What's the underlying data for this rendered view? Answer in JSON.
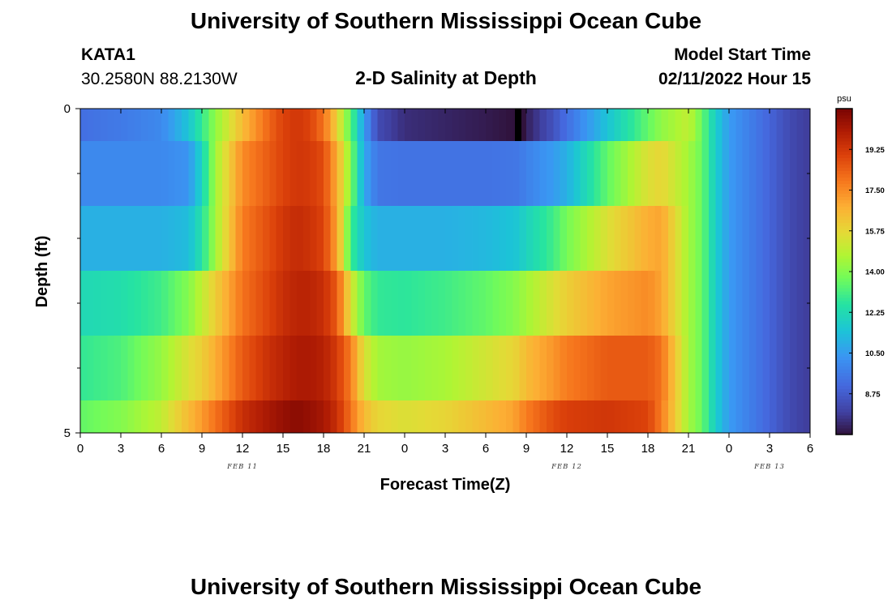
{
  "header": {
    "title": "University of Southern Mississippi Ocean Cube",
    "station_id": "KATA1",
    "station_coords": "30.2580N  88.2130W",
    "plot_subtitle": "2-D Salinity at Depth",
    "model_start_label": "Model Start Time",
    "model_start_value": "02/11/2022 Hour 15"
  },
  "footer": {
    "title": "University of Southern Mississippi Ocean Cube"
  },
  "chart_data": {
    "type": "heatmap",
    "title": "2-D Salinity at Depth",
    "xlabel": "Forecast Time(Z)",
    "ylabel": "Depth (ft)",
    "x_range_hours": [
      0,
      54
    ],
    "x_ticks": [
      {
        "hour": 0,
        "label": "0"
      },
      {
        "hour": 3,
        "label": "3"
      },
      {
        "hour": 6,
        "label": "6"
      },
      {
        "hour": 9,
        "label": "9"
      },
      {
        "hour": 12,
        "label": "12"
      },
      {
        "hour": 15,
        "label": "15"
      },
      {
        "hour": 18,
        "label": "18"
      },
      {
        "hour": 21,
        "label": "21"
      },
      {
        "hour": 24,
        "label": "0"
      },
      {
        "hour": 27,
        "label": "3"
      },
      {
        "hour": 30,
        "label": "6"
      },
      {
        "hour": 33,
        "label": "9"
      },
      {
        "hour": 36,
        "label": "12"
      },
      {
        "hour": 39,
        "label": "15"
      },
      {
        "hour": 42,
        "label": "18"
      },
      {
        "hour": 45,
        "label": "21"
      },
      {
        "hour": 48,
        "label": "0"
      },
      {
        "hour": 51,
        "label": "3"
      },
      {
        "hour": 54,
        "label": "6"
      }
    ],
    "date_labels": [
      {
        "hour": 12,
        "label": "FEB 11"
      },
      {
        "hour": 36,
        "label": "FEB 12"
      },
      {
        "hour": 51,
        "label": "FEB 13"
      }
    ],
    "y_range_ft": [
      0,
      5
    ],
    "y_tick_labels": [
      {
        "depth": 0,
        "label": "0"
      },
      {
        "depth": 5,
        "label": "5"
      }
    ],
    "y_minor_ticks": [
      1,
      2,
      3,
      4
    ],
    "depth_layers": [
      {
        "top": 0.0,
        "bottom": 0.5
      },
      {
        "top": 0.5,
        "bottom": 1.5
      },
      {
        "top": 1.5,
        "bottom": 2.5
      },
      {
        "top": 2.5,
        "bottom": 3.5
      },
      {
        "top": 3.5,
        "bottom": 4.5
      },
      {
        "top": 4.5,
        "bottom": 5.0
      }
    ],
    "series_hours": [
      0,
      3,
      6,
      8,
      9,
      10,
      12,
      14,
      15,
      16,
      17,
      18,
      19,
      19.5,
      20,
      21,
      22,
      24,
      27,
      30,
      32,
      32.4,
      33,
      35,
      36,
      39,
      42,
      43,
      45,
      46,
      47,
      48,
      49,
      50,
      51,
      52,
      53,
      54
    ],
    "salinity_by_layer": [
      [
        9.3,
        9.6,
        10.0,
        11.5,
        12.8,
        14.2,
        16.5,
        18.3,
        19.0,
        19.3,
        19.0,
        18.0,
        16.0,
        14.5,
        13.5,
        10.5,
        8.3,
        7.6,
        7.4,
        7.2,
        7.0,
        6.6,
        7.3,
        8.5,
        9.3,
        11.5,
        13.5,
        14.2,
        15.0,
        13.6,
        11.8,
        10.5,
        10.0,
        9.5,
        9.0,
        8.5,
        8.1,
        7.9
      ],
      [
        10.0,
        10.0,
        10.0,
        10.3,
        12.0,
        14.5,
        17.5,
        18.5,
        19.0,
        19.3,
        19.2,
        18.8,
        16.8,
        15.5,
        14.0,
        10.8,
        9.5,
        9.4,
        9.4,
        9.4,
        9.5,
        9.5,
        9.8,
        10.5,
        11.0,
        13.5,
        15.5,
        15.8,
        14.5,
        13.6,
        11.8,
        10.5,
        10.0,
        9.5,
        9.0,
        8.5,
        8.1,
        7.9
      ],
      [
        11.0,
        11.0,
        11.0,
        11.3,
        12.5,
        14.5,
        17.8,
        18.8,
        19.3,
        19.6,
        19.4,
        19.0,
        17.0,
        15.2,
        13.0,
        11.5,
        11.0,
        11.0,
        11.0,
        11.2,
        11.5,
        11.6,
        12.0,
        13.0,
        13.8,
        15.5,
        16.8,
        17.0,
        14.5,
        13.6,
        11.8,
        10.5,
        10.0,
        9.5,
        9.0,
        8.5,
        8.1,
        7.9
      ],
      [
        12.2,
        12.4,
        13.0,
        14.0,
        15.0,
        16.0,
        18.0,
        19.0,
        19.5,
        19.8,
        19.8,
        19.5,
        18.5,
        17.0,
        15.5,
        13.5,
        12.8,
        12.7,
        13.0,
        13.5,
        14.0,
        14.2,
        14.5,
        15.5,
        16.0,
        17.0,
        17.5,
        17.0,
        14.5,
        13.6,
        11.8,
        10.5,
        10.0,
        9.5,
        9.0,
        8.5,
        8.1,
        7.9
      ],
      [
        12.8,
        13.2,
        14.3,
        15.5,
        16.0,
        16.8,
        18.5,
        19.5,
        19.8,
        20.1,
        20.1,
        19.9,
        19.2,
        18.5,
        17.8,
        15.5,
        14.5,
        14.3,
        14.6,
        15.3,
        15.8,
        16.0,
        16.5,
        17.3,
        17.8,
        18.5,
        18.5,
        18.0,
        14.5,
        13.6,
        11.8,
        10.5,
        10.0,
        9.5,
        9.0,
        8.5,
        8.1,
        7.9
      ],
      [
        13.5,
        14.0,
        15.0,
        16.5,
        17.2,
        18.0,
        19.5,
        20.2,
        20.5,
        20.7,
        20.5,
        20.2,
        19.5,
        18.8,
        18.0,
        16.5,
        15.8,
        15.5,
        15.8,
        16.5,
        17.0,
        17.3,
        17.8,
        18.8,
        19.1,
        19.3,
        19.0,
        17.8,
        14.5,
        13.6,
        11.8,
        10.5,
        10.0,
        9.5,
        9.0,
        8.5,
        8.1,
        7.9
      ]
    ],
    "missing_data_hour": 32.4,
    "colorbar": {
      "unit": "psu",
      "min": 7.0,
      "max": 21.0,
      "tick_values": [
        8.75,
        10.5,
        12.25,
        14.0,
        15.75,
        17.5,
        19.25
      ],
      "tick_labels": [
        "8.75",
        "10.50",
        "12.25",
        "14.00",
        "15.75",
        "17.50",
        "19.25"
      ],
      "colormap": "turbo"
    }
  }
}
